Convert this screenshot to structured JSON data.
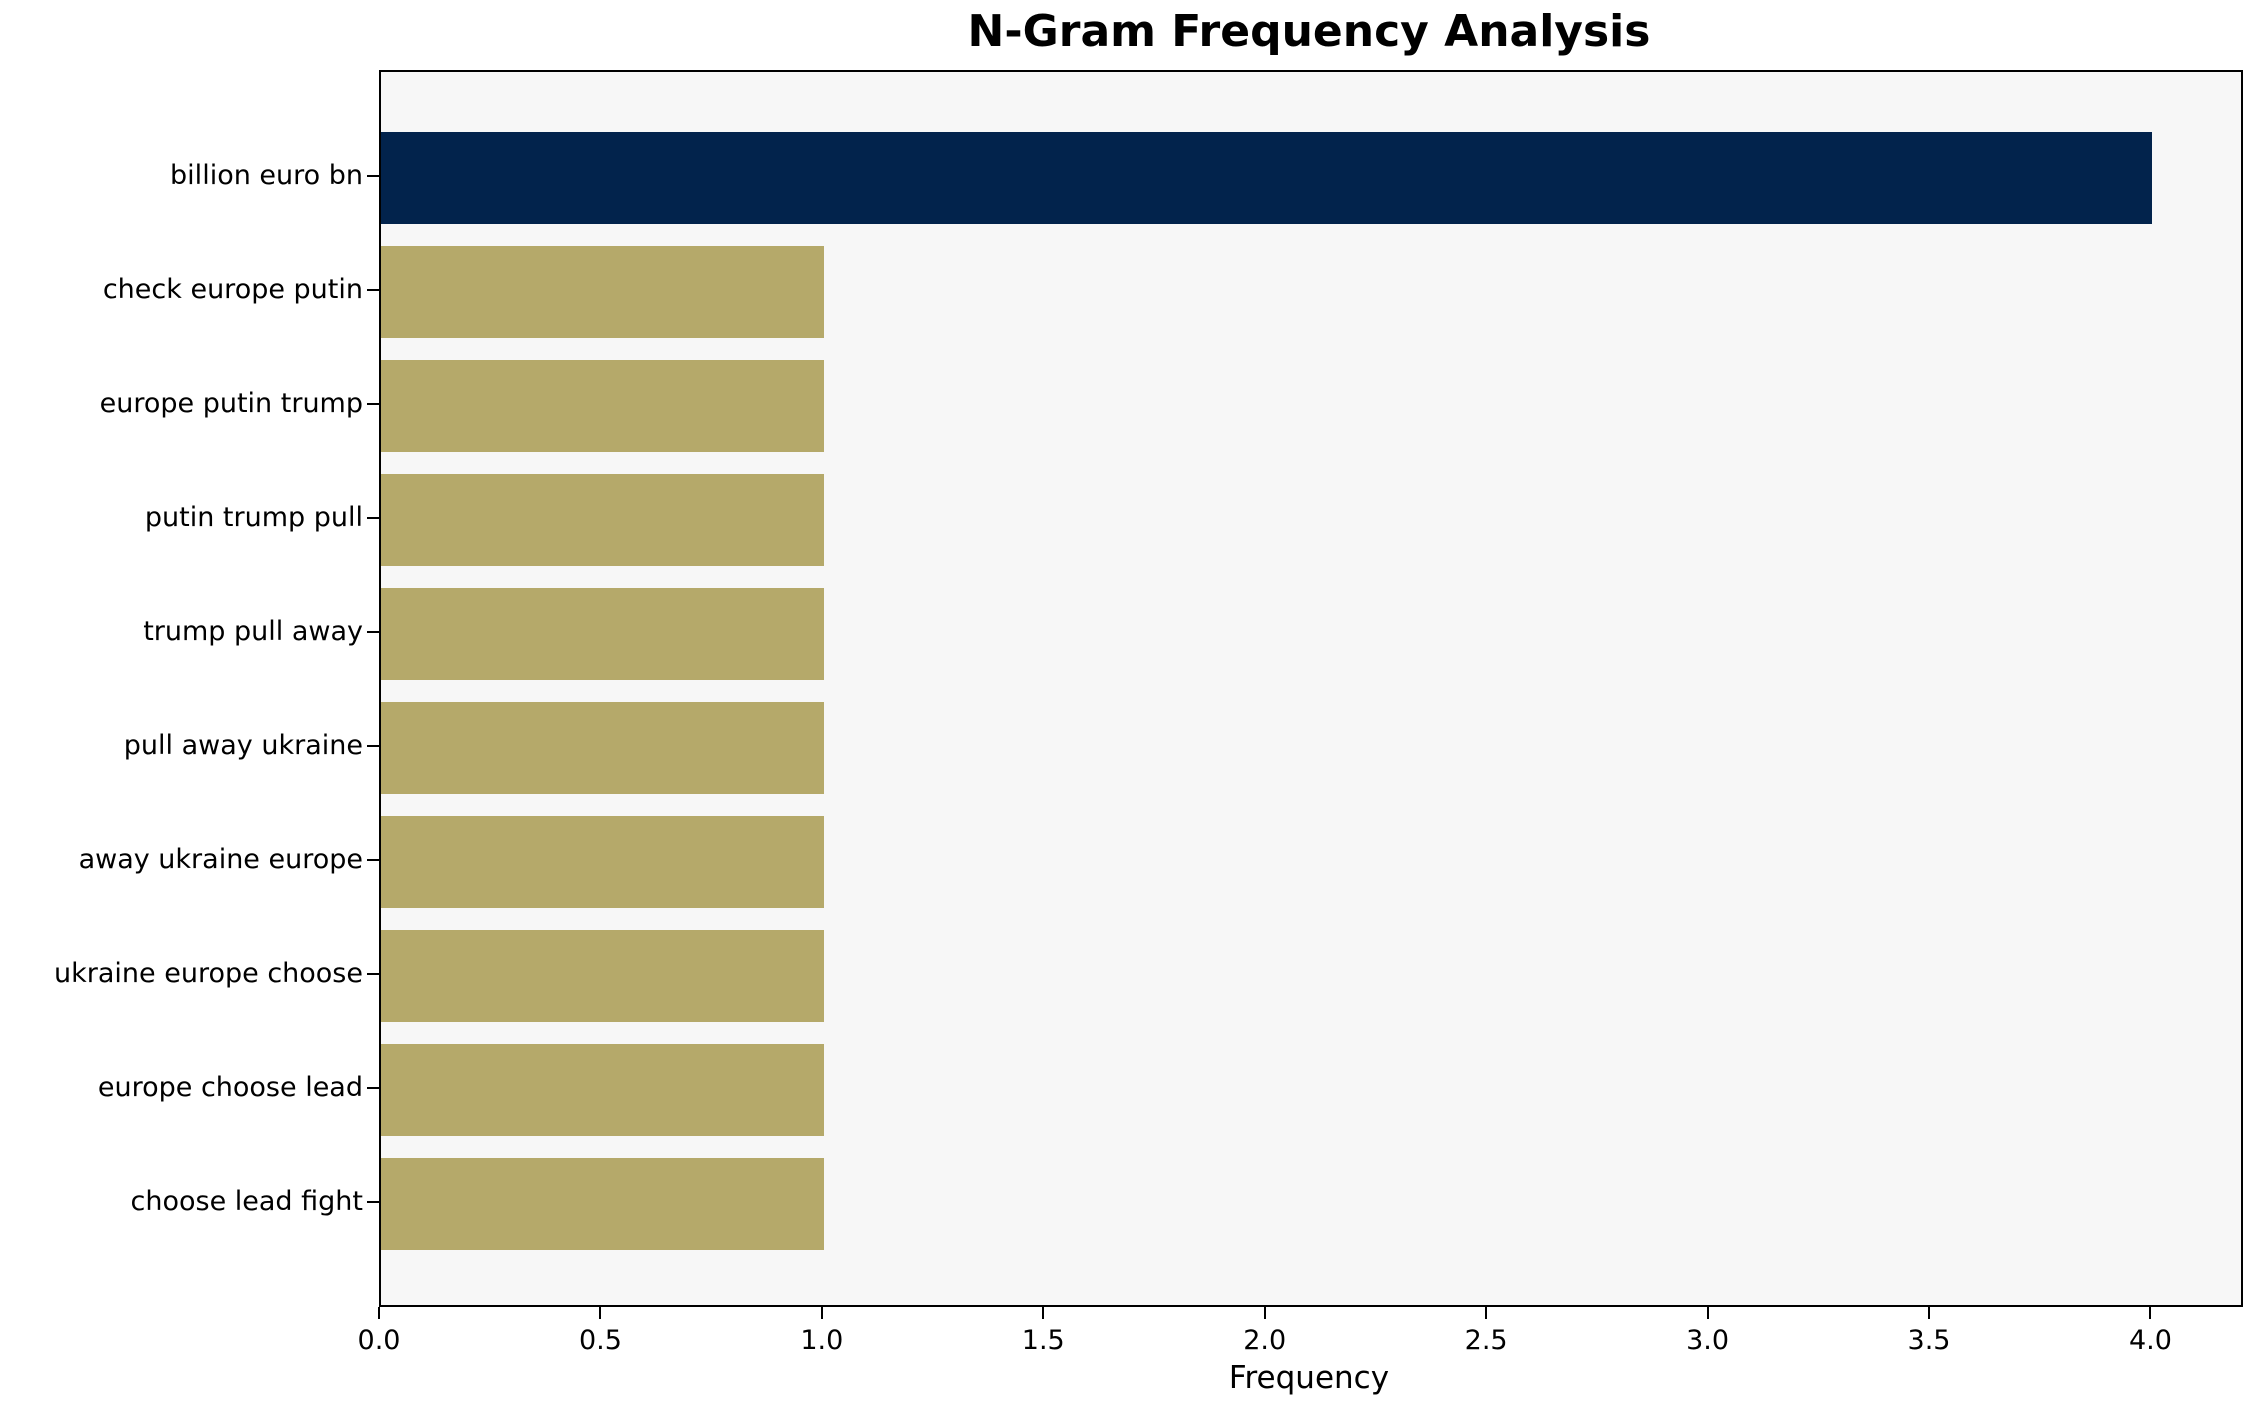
{
  "chart_data": {
    "type": "bar",
    "orientation": "horizontal",
    "title": "N-Gram Frequency Analysis",
    "xlabel": "Frequency",
    "ylabel": "",
    "categories": [
      "billion euro bn",
      "check europe putin",
      "europe putin trump",
      "putin trump pull",
      "trump pull away",
      "pull away ukraine",
      "away ukraine europe",
      "ukraine europe choose",
      "europe choose lead",
      "choose lead fight"
    ],
    "values": [
      4,
      1,
      1,
      1,
      1,
      1,
      1,
      1,
      1,
      1
    ],
    "xticks": [
      0.0,
      0.5,
      1.0,
      1.5,
      2.0,
      2.5,
      3.0,
      3.5,
      4.0
    ],
    "xtick_labels": [
      "0.0",
      "0.5",
      "1.0",
      "1.5",
      "2.0",
      "2.5",
      "3.0",
      "3.5",
      "4.0"
    ],
    "xlim": [
      0,
      4.2
    ],
    "grid": false,
    "legend": false,
    "colors": {
      "highlight_bar": "#02234c",
      "default_bar": "#b5a96a",
      "plot_background": "#f7f7f7",
      "figure_background": "#ffffff",
      "spine": "#000000",
      "text": "#000000"
    }
  }
}
